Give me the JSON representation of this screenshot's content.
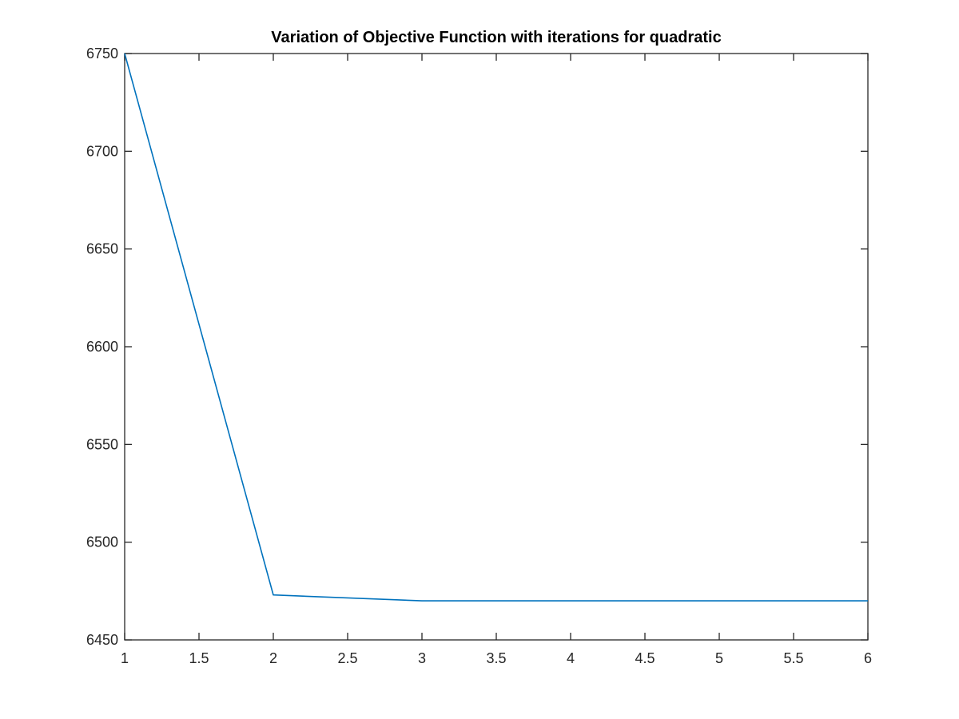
{
  "chart_data": {
    "type": "line",
    "title": "Variation of Objective Function with iterations for quadratic",
    "xlabel": "",
    "ylabel": "",
    "xlim": [
      1,
      6
    ],
    "ylim": [
      6450,
      6750
    ],
    "x_ticks": [
      "1",
      "1.5",
      "2",
      "2.5",
      "3",
      "3.5",
      "4",
      "4.5",
      "5",
      "5.5",
      "6"
    ],
    "y_ticks": [
      "6450",
      "6500",
      "6550",
      "6600",
      "6650",
      "6700",
      "6750"
    ],
    "grid": false,
    "legend": "none",
    "series": [
      {
        "x": [
          1,
          2,
          3,
          4,
          5,
          6
        ],
        "values": [
          6750,
          6473,
          6470,
          6470,
          6470,
          6470
        ],
        "color": "#0072BD"
      }
    ],
    "axis_color": "#262626"
  }
}
